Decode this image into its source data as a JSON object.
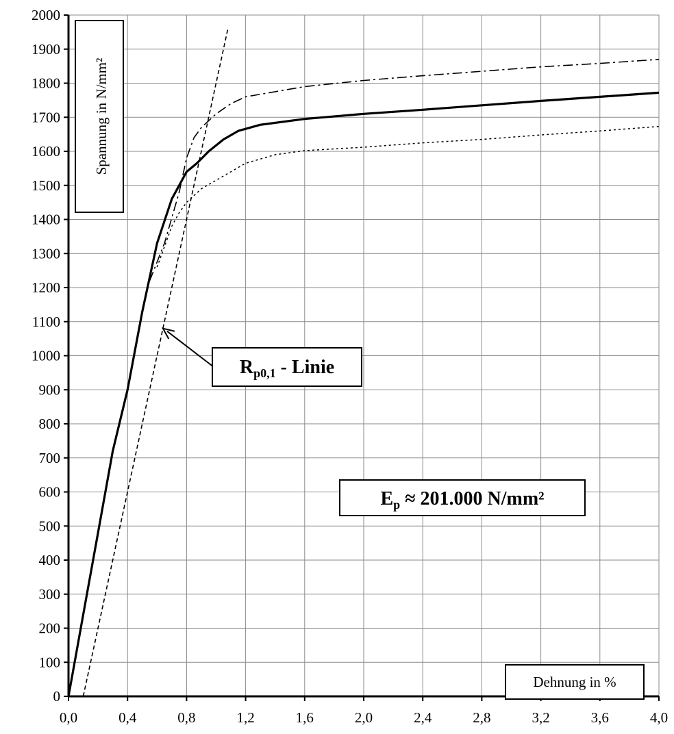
{
  "chart_data": {
    "type": "line",
    "title": "",
    "xlabel": "Dehnung in %",
    "ylabel": "Spannung in N/mm²",
    "xlim": [
      0,
      4.0
    ],
    "ylim": [
      0,
      2000
    ],
    "x_ticks": [
      "0,0",
      "0,4",
      "0,8",
      "1,2",
      "1,6",
      "2,0",
      "2,4",
      "2,8",
      "3,2",
      "3,6",
      "4,0"
    ],
    "y_ticks": [
      "0",
      "100",
      "200",
      "300",
      "400",
      "500",
      "600",
      "700",
      "800",
      "900",
      "1000",
      "1100",
      "1200",
      "1300",
      "1400",
      "1500",
      "1600",
      "1700",
      "1800",
      "1900",
      "2000"
    ],
    "grid": true,
    "series": [
      {
        "style": "solid-bold",
        "points": [
          [
            0,
            0
          ],
          [
            0.1,
            240
          ],
          [
            0.2,
            480
          ],
          [
            0.3,
            720
          ],
          [
            0.4,
            900
          ],
          [
            0.5,
            1130
          ],
          [
            0.6,
            1330
          ],
          [
            0.7,
            1460
          ],
          [
            0.8,
            1540
          ],
          [
            0.87,
            1565
          ],
          [
            0.95,
            1600
          ],
          [
            1.05,
            1635
          ],
          [
            1.15,
            1660
          ],
          [
            1.3,
            1678
          ],
          [
            1.6,
            1695
          ],
          [
            2.0,
            1710
          ],
          [
            2.4,
            1722
          ],
          [
            2.8,
            1735
          ],
          [
            3.2,
            1748
          ],
          [
            3.6,
            1760
          ],
          [
            4.0,
            1772
          ]
        ]
      },
      {
        "style": "dash-dot",
        "points": [
          [
            0.55,
            1220
          ],
          [
            0.65,
            1330
          ],
          [
            0.75,
            1480
          ],
          [
            0.8,
            1580
          ],
          [
            0.85,
            1640
          ],
          [
            0.9,
            1670
          ],
          [
            1.0,
            1710
          ],
          [
            1.1,
            1740
          ],
          [
            1.2,
            1760
          ],
          [
            1.4,
            1775
          ],
          [
            1.6,
            1790
          ],
          [
            2.0,
            1808
          ],
          [
            2.4,
            1822
          ],
          [
            2.8,
            1835
          ],
          [
            3.2,
            1848
          ],
          [
            3.6,
            1858
          ],
          [
            4.0,
            1870
          ]
        ]
      },
      {
        "style": "dotted",
        "points": [
          [
            0.6,
            1260
          ],
          [
            0.65,
            1320
          ],
          [
            0.7,
            1380
          ],
          [
            0.75,
            1420
          ],
          [
            0.8,
            1450
          ],
          [
            0.9,
            1490
          ],
          [
            1.0,
            1515
          ],
          [
            1.2,
            1565
          ],
          [
            1.4,
            1590
          ],
          [
            1.6,
            1602
          ],
          [
            2.0,
            1612
          ],
          [
            2.4,
            1625
          ],
          [
            2.8,
            1635
          ],
          [
            3.2,
            1648
          ],
          [
            3.6,
            1660
          ],
          [
            4.0,
            1673
          ]
        ]
      },
      {
        "style": "dashed",
        "points": [
          [
            0.1,
            0
          ],
          [
            1.08,
            1960
          ]
        ]
      }
    ],
    "annotations": {
      "rp_line": {
        "prefix": "R",
        "subscript": "p0,1",
        "suffix": " - Linie",
        "arrow_to": [
          0.64,
          1080
        ]
      },
      "modulus": {
        "prefix": "E",
        "subscript": "p",
        "suffix": " ≈ 201.000 N/mm²"
      }
    }
  }
}
